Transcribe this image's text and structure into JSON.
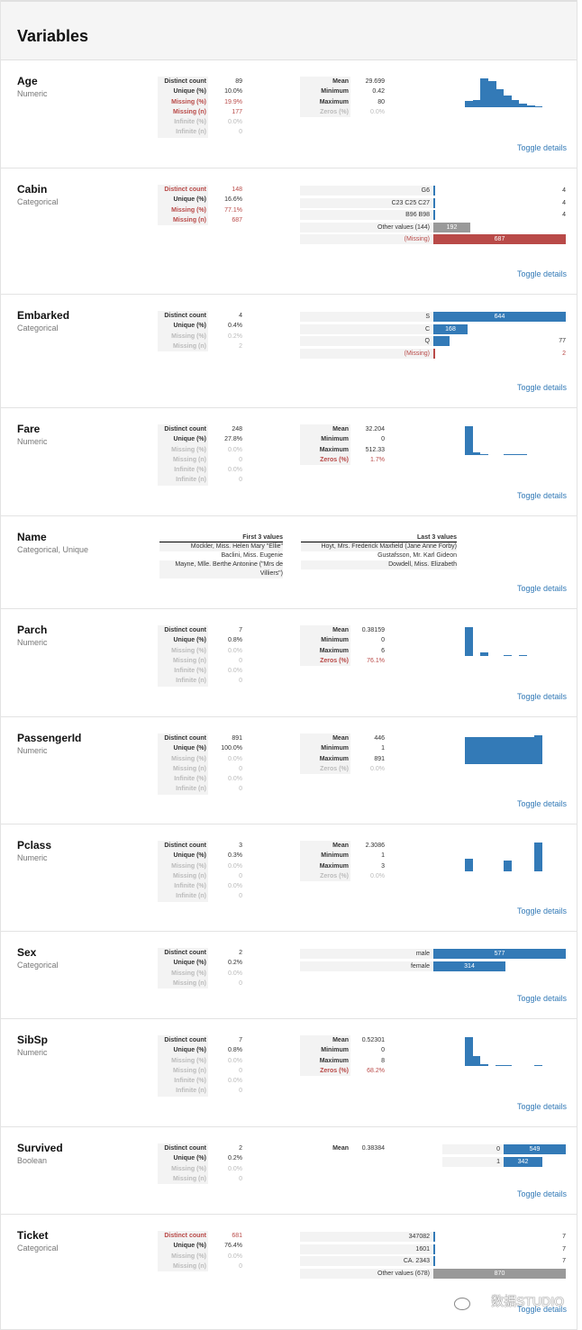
{
  "section_title": "Variables",
  "toggle_label": "Toggle details",
  "colors": {
    "bar": "#337ab7",
    "other": "#999999",
    "missing": "#b94a48"
  },
  "variables": [
    {
      "name": "Age",
      "type": "Numeric",
      "stats": [
        [
          "Distinct count",
          "89",
          ""
        ],
        [
          "Unique (%)",
          "10.0%",
          ""
        ],
        [
          "Missing (%)",
          "19.9%",
          "alert"
        ],
        [
          "Missing (n)",
          "177",
          "alert"
        ],
        [
          "Infinite (%)",
          "0.0%",
          "ign"
        ],
        [
          "Infinite (n)",
          "0",
          "ign"
        ]
      ],
      "stats2": [
        [
          "Mean",
          "29.699",
          ""
        ],
        [
          "Minimum",
          "0.42",
          ""
        ],
        [
          "Maximum",
          "80",
          ""
        ],
        [
          "Zeros (%)",
          "0.0%",
          "ign"
        ]
      ],
      "histogram": [
        0.23,
        0.24,
        1.0,
        0.9,
        0.62,
        0.42,
        0.25,
        0.14,
        0.07,
        0.03
      ]
    },
    {
      "name": "Cabin",
      "type": "Categorical",
      "stats": [
        [
          "Distinct count",
          "148",
          "alert"
        ],
        [
          "Unique (%)",
          "16.6%",
          ""
        ],
        [
          "Missing (%)",
          "77.1%",
          "alert"
        ],
        [
          "Missing (n)",
          "687",
          "alert"
        ]
      ],
      "freq": [
        [
          "G6",
          "4",
          "blue",
          ""
        ],
        [
          "C23 C25 C27",
          "4",
          "blue",
          ""
        ],
        [
          "B96 B98",
          "4",
          "blue",
          ""
        ],
        [
          "Other values (144)",
          "192",
          "gray",
          ""
        ],
        [
          "(Missing)",
          "687",
          "red",
          "miss"
        ]
      ]
    },
    {
      "name": "Embarked",
      "type": "Categorical",
      "stats": [
        [
          "Distinct count",
          "4",
          ""
        ],
        [
          "Unique (%)",
          "0.4%",
          ""
        ],
        [
          "Missing (%)",
          "0.2%",
          "ign"
        ],
        [
          "Missing (n)",
          "2",
          "ign"
        ]
      ],
      "freq": [
        [
          "S",
          "644",
          "blue",
          ""
        ],
        [
          "C",
          "168",
          "blue",
          ""
        ],
        [
          "Q",
          "77",
          "blue",
          ""
        ],
        [
          "(Missing)",
          "2",
          "red",
          "miss"
        ]
      ]
    },
    {
      "name": "Fare",
      "type": "Numeric",
      "stats": [
        [
          "Distinct count",
          "248",
          ""
        ],
        [
          "Unique (%)",
          "27.8%",
          ""
        ],
        [
          "Missing (%)",
          "0.0%",
          "ign"
        ],
        [
          "Missing (n)",
          "0",
          "ign"
        ],
        [
          "Infinite (%)",
          "0.0%",
          "ign"
        ],
        [
          "Infinite (n)",
          "0",
          "ign"
        ]
      ],
      "stats2": [
        [
          "Mean",
          "32.204",
          ""
        ],
        [
          "Minimum",
          "0",
          ""
        ],
        [
          "Maximum",
          "512.33",
          ""
        ],
        [
          "Zeros (%)",
          "1.7%",
          "alert"
        ]
      ],
      "histogram": [
        1.0,
        0.1,
        0.02,
        0.0,
        0.0,
        0.01,
        0.01,
        0.01,
        0.0,
        0.0
      ]
    },
    {
      "name": "Name",
      "type": "Categorical, Unique",
      "first_header": "First 3 values",
      "first": [
        "Mockler, Miss. Helen Mary \"Ellie\"",
        "Baclini, Miss. Eugenie",
        "Mayne, Mlle. Berthe Antonine (\"Mrs de Villiers\")"
      ],
      "last_header": "Last 3 values",
      "last": [
        "Hoyt, Mrs. Frederick Maxfield (Jane Anne Forby)",
        "Gustafsson, Mr. Karl Gideon",
        "Dowdell, Miss. Elizabeth"
      ]
    },
    {
      "name": "Parch",
      "type": "Numeric",
      "stats": [
        [
          "Distinct count",
          "7",
          ""
        ],
        [
          "Unique (%)",
          "0.8%",
          ""
        ],
        [
          "Missing (%)",
          "0.0%",
          "ign"
        ],
        [
          "Missing (n)",
          "0",
          "ign"
        ],
        [
          "Infinite (%)",
          "0.0%",
          "ign"
        ],
        [
          "Infinite (n)",
          "0",
          "ign"
        ]
      ],
      "stats2": [
        [
          "Mean",
          "0.38159",
          ""
        ],
        [
          "Minimum",
          "0",
          ""
        ],
        [
          "Maximum",
          "6",
          ""
        ],
        [
          "Zeros (%)",
          "76.1%",
          "alert"
        ]
      ],
      "histogram": [
        1.0,
        0.0,
        0.13,
        0.0,
        0.0,
        0.02,
        0.0,
        0.02,
        0.0,
        0.0
      ]
    },
    {
      "name": "PassengerId",
      "type": "Numeric",
      "stats": [
        [
          "Distinct count",
          "891",
          ""
        ],
        [
          "Unique (%)",
          "100.0%",
          ""
        ],
        [
          "Missing (%)",
          "0.0%",
          "ign"
        ],
        [
          "Missing (n)",
          "0",
          "ign"
        ],
        [
          "Infinite (%)",
          "0.0%",
          "ign"
        ],
        [
          "Infinite (n)",
          "0",
          "ign"
        ]
      ],
      "stats2": [
        [
          "Mean",
          "446",
          ""
        ],
        [
          "Minimum",
          "1",
          ""
        ],
        [
          "Maximum",
          "891",
          ""
        ],
        [
          "Zeros (%)",
          "0.0%",
          "ign"
        ]
      ],
      "histogram": [
        0.94,
        0.94,
        0.94,
        0.94,
        0.94,
        0.94,
        0.94,
        0.94,
        0.94,
        1.0
      ]
    },
    {
      "name": "Pclass",
      "type": "Numeric",
      "stats": [
        [
          "Distinct count",
          "3",
          ""
        ],
        [
          "Unique (%)",
          "0.3%",
          ""
        ],
        [
          "Missing (%)",
          "0.0%",
          "ign"
        ],
        [
          "Missing (n)",
          "0",
          "ign"
        ],
        [
          "Infinite (%)",
          "0.0%",
          "ign"
        ],
        [
          "Infinite (n)",
          "0",
          "ign"
        ]
      ],
      "stats2": [
        [
          "Mean",
          "2.3086",
          ""
        ],
        [
          "Minimum",
          "1",
          ""
        ],
        [
          "Maximum",
          "3",
          ""
        ],
        [
          "Zeros (%)",
          "0.0%",
          "ign"
        ]
      ],
      "histogram": [
        0.44,
        0.0,
        0.0,
        0.0,
        0.0,
        0.38,
        0.0,
        0.0,
        0.0,
        1.0
      ]
    },
    {
      "name": "Sex",
      "type": "Categorical",
      "stats": [
        [
          "Distinct count",
          "2",
          ""
        ],
        [
          "Unique (%)",
          "0.2%",
          ""
        ],
        [
          "Missing (%)",
          "0.0%",
          "ign"
        ],
        [
          "Missing (n)",
          "0",
          "ign"
        ]
      ],
      "freq": [
        [
          "male",
          "577",
          "blue",
          ""
        ],
        [
          "female",
          "314",
          "blue",
          ""
        ]
      ]
    },
    {
      "name": "SibSp",
      "type": "Numeric",
      "stats": [
        [
          "Distinct count",
          "7",
          ""
        ],
        [
          "Unique (%)",
          "0.8%",
          ""
        ],
        [
          "Missing (%)",
          "0.0%",
          "ign"
        ],
        [
          "Missing (n)",
          "0",
          "ign"
        ],
        [
          "Infinite (%)",
          "0.0%",
          "ign"
        ],
        [
          "Infinite (n)",
          "0",
          "ign"
        ]
      ],
      "stats2": [
        [
          "Mean",
          "0.52301",
          ""
        ],
        [
          "Minimum",
          "0",
          ""
        ],
        [
          "Maximum",
          "8",
          ""
        ],
        [
          "Zeros (%)",
          "68.2%",
          "alert"
        ]
      ],
      "histogram": [
        1.0,
        0.34,
        0.05,
        0.0,
        0.04,
        0.03,
        0.0,
        0.0,
        0.0,
        0.01
      ]
    },
    {
      "name": "Survived",
      "type": "Boolean",
      "stats": [
        [
          "Distinct count",
          "2",
          ""
        ],
        [
          "Unique (%)",
          "0.2%",
          ""
        ],
        [
          "Missing (%)",
          "0.0%",
          "ign"
        ],
        [
          "Missing (n)",
          "0",
          "ign"
        ]
      ],
      "mean_label": "Mean",
      "mean_value": "0.38384",
      "freq": [
        [
          "0",
          "549",
          "blue",
          ""
        ],
        [
          "1",
          "342",
          "blue",
          ""
        ]
      ]
    },
    {
      "name": "Ticket",
      "type": "Categorical",
      "stats": [
        [
          "Distinct count",
          "681",
          "alert"
        ],
        [
          "Unique (%)",
          "76.4%",
          ""
        ],
        [
          "Missing (%)",
          "0.0%",
          "ign"
        ],
        [
          "Missing (n)",
          "0",
          "ign"
        ]
      ],
      "freq": [
        [
          "347082",
          "7",
          "blue",
          ""
        ],
        [
          "1601",
          "7",
          "blue",
          ""
        ],
        [
          "CA. 2343",
          "7",
          "blue",
          ""
        ],
        [
          "Other values (678)",
          "870",
          "gray",
          ""
        ]
      ]
    }
  ],
  "watermark": "数据STUDIO"
}
